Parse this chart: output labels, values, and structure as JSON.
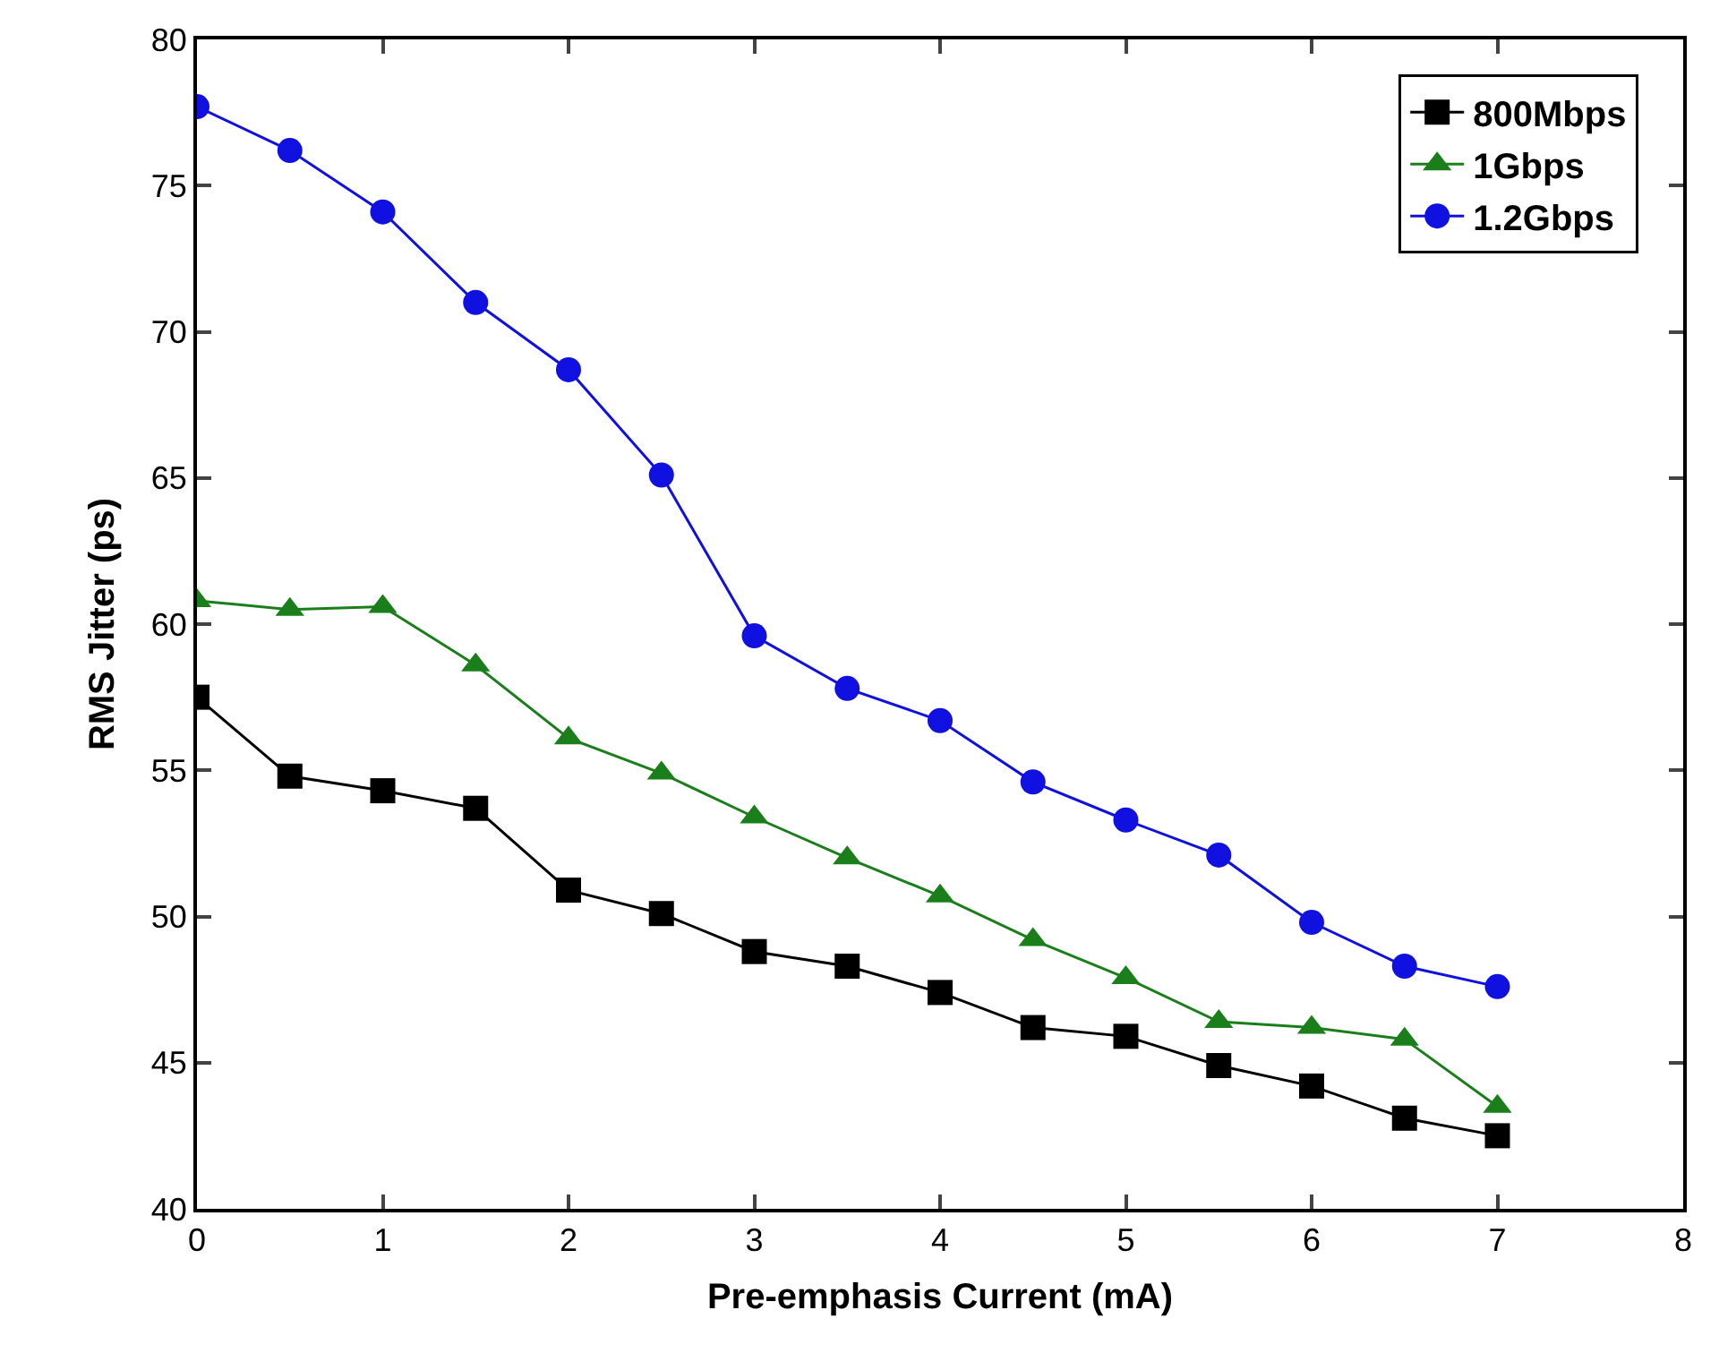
{
  "chart_data": {
    "type": "line",
    "xlabel": "Pre-emphasis Current (mA)",
    "ylabel": "RMS Jitter (ps)",
    "x": [
      0,
      0.5,
      1,
      1.5,
      2,
      2.5,
      3,
      3.5,
      4,
      4.5,
      5,
      5.5,
      6,
      6.5,
      7
    ],
    "series": [
      {
        "name": "800Mbps",
        "color": "#000000",
        "marker": "square",
        "values": [
          57.5,
          54.8,
          54.3,
          53.7,
          50.9,
          50.1,
          48.8,
          48.3,
          47.4,
          46.2,
          45.9,
          44.9,
          44.2,
          43.1,
          42.5
        ]
      },
      {
        "name": "1Gbps",
        "color": "#1a7f1a",
        "marker": "triangle",
        "values": [
          60.8,
          60.5,
          60.6,
          58.6,
          56.1,
          54.9,
          53.4,
          52.0,
          50.7,
          49.2,
          47.9,
          46.4,
          46.2,
          45.8,
          43.5
        ]
      },
      {
        "name": "1.2Gbps",
        "color": "#1010e0",
        "marker": "circle",
        "values": [
          77.7,
          76.2,
          74.1,
          71.0,
          68.7,
          65.1,
          59.6,
          57.8,
          56.7,
          54.6,
          53.3,
          52.1,
          49.8,
          48.3,
          47.6
        ]
      }
    ],
    "xlim": [
      0,
      8
    ],
    "xticks": [
      0,
      1,
      2,
      3,
      4,
      5,
      6,
      7,
      8
    ],
    "ylim": [
      40,
      80
    ],
    "yticks": [
      40,
      45,
      50,
      55,
      60,
      65,
      70,
      75,
      80
    ],
    "legend": "top right",
    "line_style": "solid"
  }
}
